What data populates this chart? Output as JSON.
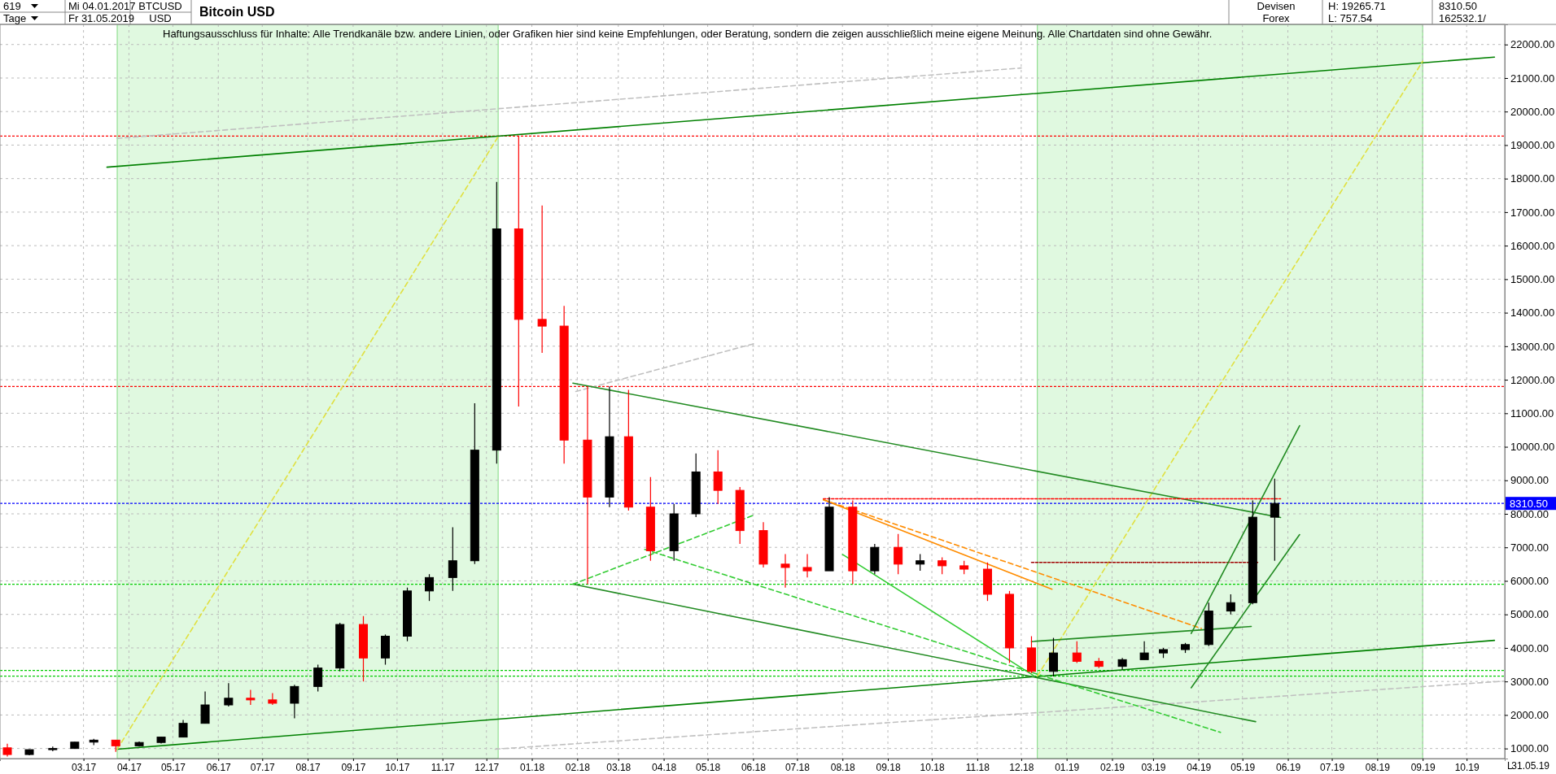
{
  "chart_data": {
    "type": "candlestick",
    "title": "Bitcoin USD",
    "annotations": [
      "619",
      "Tage",
      "Mi 04.01.2017",
      "Fr 31.05.2019",
      "BTCUSD",
      "USD",
      "Devisen",
      "Forex",
      "H: 19265.71",
      "L: 757.54",
      "8310.50",
      "162532.1/",
      "Haftungsausschluss für Inhalte: Alle Trendkanäle bzw. andere Linien, oder Grafiken hier sind keine Empfehlungen, oder Beratung, sondern die zeigen ausschließlich meine eigene Meinung. Alle Chartdaten sind ohne Gewähr.",
      "31.05.19",
      "L"
    ],
    "x": [
      "2017-01-08",
      "2017-01-23",
      "2017-02-08",
      "2017-02-23",
      "2017-03-08",
      "2017-03-23",
      "2017-04-08",
      "2017-04-23",
      "2017-05-08",
      "2017-05-23",
      "2017-06-08",
      "2017-06-23",
      "2017-07-08",
      "2017-07-23",
      "2017-08-08",
      "2017-08-23",
      "2017-09-08",
      "2017-09-23",
      "2017-10-08",
      "2017-10-23",
      "2017-11-08",
      "2017-11-23",
      "2017-12-08",
      "2017-12-23",
      "2018-01-08",
      "2018-01-23",
      "2018-02-08",
      "2018-02-23",
      "2018-03-08",
      "2018-03-23",
      "2018-04-08",
      "2018-04-23",
      "2018-05-08",
      "2018-05-23",
      "2018-06-08",
      "2018-06-23",
      "2018-07-08",
      "2018-07-23",
      "2018-08-08",
      "2018-08-23",
      "2018-09-08",
      "2018-09-23",
      "2018-10-08",
      "2018-10-23",
      "2018-11-08",
      "2018-11-23",
      "2018-12-08",
      "2018-12-23",
      "2019-01-08",
      "2019-01-23",
      "2019-02-08",
      "2019-02-23",
      "2019-03-08",
      "2019-03-23",
      "2019-04-08",
      "2019-04-23",
      "2019-05-08",
      "2019-05-23"
    ],
    "ohlc": [
      [
        1020,
        1140,
        760,
        820
      ],
      [
        820,
        970,
        800,
        965
      ],
      [
        965,
        1060,
        920,
        1000
      ],
      [
        1000,
        1200,
        990,
        1190
      ],
      [
        1190,
        1290,
        1100,
        1250
      ],
      [
        1250,
        1260,
        900,
        1080
      ],
      [
        1080,
        1210,
        1060,
        1180
      ],
      [
        1180,
        1350,
        1150,
        1340
      ],
      [
        1340,
        1850,
        1330,
        1750
      ],
      [
        1750,
        2700,
        1750,
        2300
      ],
      [
        2300,
        2950,
        2250,
        2500
      ],
      [
        2500,
        2750,
        2300,
        2450
      ],
      [
        2450,
        2650,
        2300,
        2350
      ],
      [
        2350,
        2900,
        1900,
        2850
      ],
      [
        2850,
        3500,
        2700,
        3400
      ],
      [
        3400,
        4750,
        3300,
        4700
      ],
      [
        4700,
        4950,
        3000,
        3700
      ],
      [
        3700,
        4400,
        3500,
        4350
      ],
      [
        4350,
        5800,
        4200,
        5700
      ],
      [
        5700,
        6200,
        5400,
        6100
      ],
      [
        6100,
        7600,
        5700,
        6600
      ],
      [
        6600,
        11300,
        6500,
        9900
      ],
      [
        9900,
        17900,
        9500,
        16500
      ],
      [
        16500,
        19266,
        11200,
        13800
      ],
      [
        13800,
        17200,
        12800,
        13600
      ],
      [
        13600,
        14200,
        9500,
        10200
      ],
      [
        10200,
        11800,
        5900,
        8500
      ],
      [
        8500,
        11800,
        8200,
        10300
      ],
      [
        10300,
        11700,
        8100,
        8200
      ],
      [
        8200,
        9100,
        6600,
        6900
      ],
      [
        6900,
        8300,
        6600,
        8000
      ],
      [
        8000,
        9800,
        7900,
        9250
      ],
      [
        9250,
        9900,
        8300,
        8700
      ],
      [
        8700,
        8800,
        7100,
        7500
      ],
      [
        7500,
        7750,
        6400,
        6500
      ],
      [
        6500,
        6800,
        5800,
        6400
      ],
      [
        6400,
        6800,
        6100,
        6300
      ],
      [
        6300,
        8500,
        6300,
        8200
      ],
      [
        8200,
        8400,
        5900,
        6300
      ],
      [
        6300,
        7100,
        6200,
        7000
      ],
      [
        7000,
        7400,
        6200,
        6500
      ],
      [
        6500,
        6800,
        6300,
        6600
      ],
      [
        6600,
        6700,
        6200,
        6450
      ],
      [
        6450,
        6600,
        6200,
        6350
      ],
      [
        6350,
        6550,
        5400,
        5600
      ],
      [
        5600,
        5700,
        3550,
        4000
      ],
      [
        4000,
        4350,
        3250,
        3300
      ],
      [
        3300,
        4300,
        3150,
        3850
      ],
      [
        3850,
        4200,
        3550,
        3600
      ],
      [
        3600,
        3700,
        3400,
        3450
      ],
      [
        3450,
        3700,
        3350,
        3650
      ],
      [
        3650,
        4200,
        3650,
        3850
      ],
      [
        3850,
        4000,
        3700,
        3950
      ],
      [
        3950,
        4150,
        3850,
        4100
      ],
      [
        4100,
        5350,
        4050,
        5100
      ],
      [
        5100,
        5600,
        5000,
        5350
      ],
      [
        5350,
        8400,
        5300,
        7900
      ],
      [
        7900,
        9050,
        6600,
        8310.5
      ]
    ],
    "colors": [
      "#ff0000",
      "#000000",
      "#000000",
      "#000000",
      "#000000",
      "#ff0000",
      "#000000",
      "#000000",
      "#000000",
      "#000000",
      "#000000",
      "#ff0000",
      "#ff0000",
      "#000000",
      "#000000",
      "#000000",
      "#ff0000",
      "#000000",
      "#000000",
      "#000000",
      "#000000",
      "#000000",
      "#000000",
      "#ff0000",
      "#ff0000",
      "#ff0000",
      "#ff0000",
      "#000000",
      "#ff0000",
      "#ff0000",
      "#000000",
      "#000000",
      "#ff0000",
      "#ff0000",
      "#ff0000",
      "#ff0000",
      "#ff0000",
      "#000000",
      "#ff0000",
      "#000000",
      "#ff0000",
      "#000000",
      "#ff0000",
      "#ff0000",
      "#ff0000",
      "#ff0000",
      "#ff0000",
      "#000000",
      "#ff0000",
      "#ff0000",
      "#000000",
      "#000000",
      "#000000",
      "#000000",
      "#000000",
      "#000000",
      "#000000",
      "#000000"
    ],
    "series": [
      {
        "type": "line",
        "x": [
          "2017-03-17",
          "2019-10-20"
        ],
        "values": [
          18340,
          21625
        ],
        "color": "#008000"
      },
      {
        "type": "line",
        "x": [
          "2017-03-24",
          "2019-10-20"
        ],
        "values": [
          980,
          4225
        ],
        "color": "#008000"
      },
      {
        "type": "line",
        "x": [
          "2017-03-24",
          "2018-12-01"
        ],
        "values": [
          19200,
          21300
        ],
        "color": "#c0c0c0",
        "line_style": "dashed"
      },
      {
        "type": "line",
        "x": [
          "2017-12-07",
          "2019-10-27"
        ],
        "values": [
          980,
          3010
        ],
        "color": "#c0c0c0",
        "line_style": "dashed"
      },
      {
        "type": "line",
        "x": [
          "2018-01-31",
          "2018-06-02"
        ],
        "values": [
          11650,
          13080
        ],
        "color": "#c0c0c0",
        "line_style": "dashed"
      },
      {
        "type": "line",
        "x": [
          "2017-03-24",
          "2017-12-09"
        ],
        "values": [
          980,
          19250
        ],
        "color": "#e0e040",
        "line_style": "dashed"
      },
      {
        "type": "line",
        "x": [
          "2018-12-12",
          "2019-09-01"
        ],
        "values": [
          3160,
          21500
        ],
        "color": "#e0e040",
        "line_style": "dashed"
      },
      {
        "type": "line",
        "x": [
          "2018-01-29",
          "2019-05-27"
        ],
        "values": [
          11900,
          7890
        ],
        "color": "#228b22"
      },
      {
        "type": "line",
        "x": [
          "2018-01-29",
          "2019-05-10"
        ],
        "values": [
          5900,
          1800
        ],
        "color": "#228b22"
      },
      {
        "type": "line",
        "x": [
          "2018-07-19",
          "2019-04-03"
        ],
        "values": [
          8420,
          4580
        ],
        "color": "#ff8c00",
        "line_style": "dashed"
      },
      {
        "type": "line",
        "x": [
          "2018-07-19",
          "2018-12-22"
        ],
        "values": [
          8420,
          5750
        ],
        "color": "#ff8c00"
      },
      {
        "type": "line",
        "x": [
          "2018-07-19",
          "2019-05-27"
        ],
        "values": [
          8450,
          8450
        ],
        "color": "#ff0000",
        "line_style": "dotted"
      },
      {
        "type": "line",
        "x": [
          "2018-12-08",
          "2019-05-12"
        ],
        "values": [
          6550,
          6550
        ],
        "color": "#a00000",
        "line_style": "dotted"
      },
      {
        "type": "line",
        "x": [
          "2018-01-29",
          "2018-06-02"
        ],
        "values": [
          5900,
          7970
        ],
        "color": "#33cc33",
        "line_style": "dashed"
      },
      {
        "type": "line",
        "x": [
          "2018-03-19",
          "2019-04-16"
        ],
        "values": [
          6940,
          1480
        ],
        "color": "#33cc33",
        "line_style": "dashed"
      },
      {
        "type": "line",
        "x": [
          "2018-08-01",
          "2018-12-10"
        ],
        "values": [
          6790,
          3160
        ],
        "color": "#33cc33"
      },
      {
        "type": "line",
        "x": [
          "2018-12-08",
          "2019-05-07"
        ],
        "values": [
          4190,
          4640
        ],
        "color": "#228b22"
      },
      {
        "type": "line",
        "x": [
          "2019-03-27",
          "2019-06-09"
        ],
        "values": [
          2810,
          7380
        ],
        "color": "#228b22"
      },
      {
        "type": "line",
        "x": [
          "2019-03-27",
          "2019-06-09"
        ],
        "values": [
          4430,
          10630
        ],
        "color": "#228b22"
      }
    ],
    "ref_lines": [
      {
        "axis": "y",
        "value": 19266,
        "color": "#ff0000",
        "line_style": "dotted"
      },
      {
        "axis": "y",
        "value": 11800,
        "color": "#ff0000",
        "line_style": "dotted"
      },
      {
        "axis": "y",
        "value": 8310.5,
        "label": "8310.50",
        "color": "#0000ff",
        "line_style": "dotted"
      },
      {
        "axis": "y",
        "value": 5900,
        "color": "#00cc00",
        "line_style": "dotted"
      },
      {
        "axis": "y",
        "value": 3330,
        "color": "#00cc00",
        "line_style": "dotted"
      },
      {
        "axis": "y",
        "value": 3160,
        "color": "#00cc00",
        "line_style": "dotted"
      }
    ],
    "bands": [
      {
        "axis": "x",
        "from": "2017-03-24",
        "to": "2017-12-09",
        "color": "#ccf5cc"
      },
      {
        "axis": "x",
        "from": "2018-12-12",
        "to": "2019-09-01",
        "color": "#ccf5cc"
      }
    ],
    "xlim": [
      "2017-01-03",
      "2019-10-27"
    ],
    "xticks": [
      {
        "value": "2017-03-01",
        "label": "03.17"
      },
      {
        "value": "2017-04-01",
        "label": "04.17"
      },
      {
        "value": "2017-05-01",
        "label": "05.17"
      },
      {
        "value": "2017-06-01",
        "label": "06.17"
      },
      {
        "value": "2017-07-01",
        "label": "07.17"
      },
      {
        "value": "2017-08-01",
        "label": "08.17"
      },
      {
        "value": "2017-09-01",
        "label": "09.17"
      },
      {
        "value": "2017-10-01",
        "label": "10.17"
      },
      {
        "value": "2017-11-01",
        "label": "11.17"
      },
      {
        "value": "2017-12-01",
        "label": "12.17"
      },
      {
        "value": "2018-01-01",
        "label": "01.18"
      },
      {
        "value": "2018-02-01",
        "label": "02.18"
      },
      {
        "value": "2018-03-01",
        "label": "03.18"
      },
      {
        "value": "2018-04-01",
        "label": "04.18"
      },
      {
        "value": "2018-05-01",
        "label": "05.18"
      },
      {
        "value": "2018-06-01",
        "label": "06.18"
      },
      {
        "value": "2018-07-01",
        "label": "07.18"
      },
      {
        "value": "2018-08-01",
        "label": "08.18"
      },
      {
        "value": "2018-09-01",
        "label": "09.18"
      },
      {
        "value": "2018-10-01",
        "label": "10.18"
      },
      {
        "value": "2018-11-01",
        "label": "11.18"
      },
      {
        "value": "2018-12-01",
        "label": "12.18"
      },
      {
        "value": "2019-01-01",
        "label": "01.19"
      },
      {
        "value": "2019-02-01",
        "label": "02.19"
      },
      {
        "value": "2019-03-01",
        "label": "03.19"
      },
      {
        "value": "2019-04-01",
        "label": "04.19"
      },
      {
        "value": "2019-05-01",
        "label": "05.19"
      },
      {
        "value": "2019-06-01",
        "label": "06.19"
      },
      {
        "value": "2019-07-01",
        "label": "07.19"
      },
      {
        "value": "2019-08-01",
        "label": "08.19"
      },
      {
        "value": "2019-09-01",
        "label": "09.19"
      },
      {
        "value": "2019-10-01",
        "label": "10.19"
      }
    ],
    "ylim": [
      700,
      22600
    ],
    "yticks": [
      {
        "value": 1000,
        "label": "1000.00"
      },
      {
        "value": 2000,
        "label": "2000.00"
      },
      {
        "value": 3000,
        "label": "3000.00"
      },
      {
        "value": 4000,
        "label": "4000.00"
      },
      {
        "value": 5000,
        "label": "5000.00"
      },
      {
        "value": 6000,
        "label": "6000.00"
      },
      {
        "value": 7000,
        "label": "7000.00"
      },
      {
        "value": 8000,
        "label": "8000.00"
      },
      {
        "value": 9000,
        "label": "9000.00"
      },
      {
        "value": 10000,
        "label": "10000.00"
      },
      {
        "value": 11000,
        "label": "11000.00"
      },
      {
        "value": 12000,
        "label": "12000.00"
      },
      {
        "value": 13000,
        "label": "13000.00"
      },
      {
        "value": 14000,
        "label": "14000.00"
      },
      {
        "value": 15000,
        "label": "15000.00"
      },
      {
        "value": 16000,
        "label": "16000.00"
      },
      {
        "value": 17000,
        "label": "17000.00"
      },
      {
        "value": 18000,
        "label": "18000.00"
      },
      {
        "value": 19000,
        "label": "19000.00"
      },
      {
        "value": 20000,
        "label": "20000.00"
      },
      {
        "value": 21000,
        "label": "21000.00"
      },
      {
        "value": 22000,
        "label": "22000.00"
      }
    ],
    "grid": true
  }
}
